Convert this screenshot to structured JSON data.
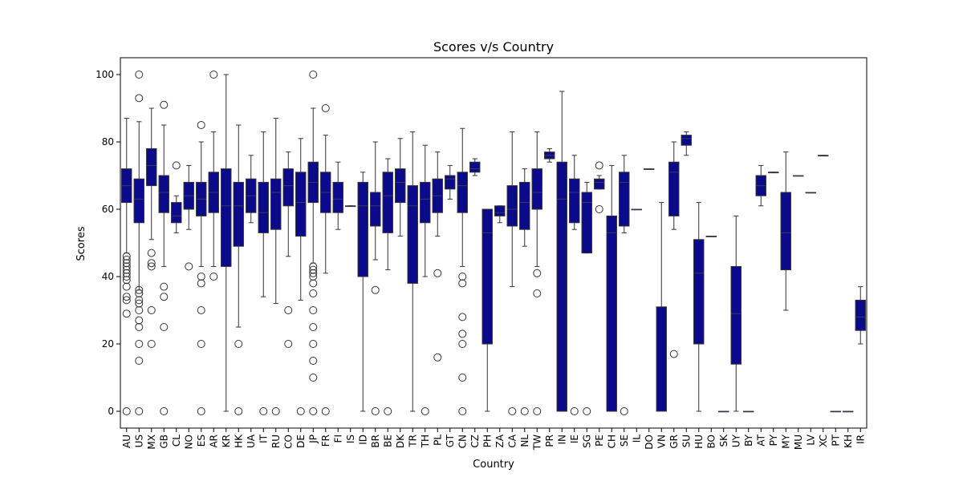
{
  "chart_data": {
    "type": "box",
    "title": "Scores v/s Country",
    "xlabel": "Country",
    "ylabel": "Scores",
    "ylim": [
      -5,
      105
    ],
    "yticks": [
      0,
      20,
      40,
      60,
      80,
      100
    ],
    "grid": false,
    "legend": "none",
    "box_color": "#0a0a8a",
    "median_color": "#3c3c5a",
    "outlier_color": "#333333",
    "categories": [
      "AU",
      "US",
      "MX",
      "GB",
      "CL",
      "NO",
      "ES",
      "AR",
      "KR",
      "HK",
      "UA",
      "IT",
      "RU",
      "CO",
      "DE",
      "JP",
      "FR",
      "FI",
      "IS",
      "ID",
      "BR",
      "BE",
      "DK",
      "TR",
      "TH",
      "PL",
      "GT",
      "CN",
      "CZ",
      "PH",
      "ZA",
      "CA",
      "NL",
      "TW",
      "PR",
      "IN",
      "IE",
      "SG",
      "PE",
      "CH",
      "SE",
      "IL",
      "DO",
      "VN",
      "GR",
      "SU",
      "HU",
      "BO",
      "SK",
      "UY",
      "BY",
      "AT",
      "PY",
      "MY",
      "MU",
      "LV",
      "XC",
      "PT",
      "KH",
      "IR"
    ],
    "boxes": [
      {
        "country": "AU",
        "min": 47,
        "q1": 62,
        "median": 67,
        "q3": 72,
        "max": 87,
        "outliers": [
          0,
          29,
          33,
          34,
          37,
          39,
          40,
          41,
          42,
          43,
          44,
          45,
          46
        ]
      },
      {
        "country": "US",
        "min": 36,
        "q1": 56,
        "median": 63,
        "q3": 69,
        "max": 86,
        "outliers": [
          0,
          15,
          20,
          25,
          27,
          30,
          32,
          33,
          35,
          36,
          93,
          100
        ]
      },
      {
        "country": "MX",
        "min": 51,
        "q1": 67,
        "median": 73,
        "q3": 78,
        "max": 90,
        "outliers": [
          20,
          30,
          43,
          44,
          47
        ]
      },
      {
        "country": "GB",
        "min": 43,
        "q1": 59,
        "median": 65,
        "q3": 70,
        "max": 85,
        "outliers": [
          0,
          25,
          34,
          37,
          91
        ]
      },
      {
        "country": "CL",
        "min": 53,
        "q1": 56,
        "median": 58,
        "q3": 62,
        "max": 64,
        "outliers": [
          73
        ]
      },
      {
        "country": "NO",
        "min": 54,
        "q1": 60,
        "median": 64,
        "q3": 68,
        "max": 73,
        "outliers": [
          43
        ]
      },
      {
        "country": "ES",
        "min": 43,
        "q1": 58,
        "median": 63,
        "q3": 68,
        "max": 80,
        "outliers": [
          0,
          20,
          30,
          38,
          40,
          85
        ]
      },
      {
        "country": "AR",
        "min": 43,
        "q1": 59,
        "median": 65,
        "q3": 71,
        "max": 83,
        "outliers": [
          40,
          100
        ]
      },
      {
        "country": "KR",
        "min": 0,
        "q1": 43,
        "median": 61,
        "q3": 72,
        "max": 100,
        "outliers": []
      },
      {
        "country": "HK",
        "min": 25,
        "q1": 49,
        "median": 61,
        "q3": 68,
        "max": 85,
        "outliers": [
          0,
          20
        ]
      },
      {
        "country": "UA",
        "min": 56,
        "q1": 59,
        "median": 64,
        "q3": 69,
        "max": 76,
        "outliers": []
      },
      {
        "country": "IT",
        "min": 34,
        "q1": 53,
        "median": 59,
        "q3": 68,
        "max": 83,
        "outliers": [
          0
        ]
      },
      {
        "country": "RU",
        "min": 32,
        "q1": 54,
        "median": 65,
        "q3": 69,
        "max": 87,
        "outliers": [
          0
        ]
      },
      {
        "country": "CO",
        "min": 46,
        "q1": 61,
        "median": 67,
        "q3": 72,
        "max": 77,
        "outliers": [
          20,
          30
        ]
      },
      {
        "country": "DE",
        "min": 33,
        "q1": 52,
        "median": 62,
        "q3": 71,
        "max": 81,
        "outliers": [
          0
        ]
      },
      {
        "country": "JP",
        "min": 44,
        "q1": 62,
        "median": 68,
        "q3": 74,
        "max": 90,
        "outliers": [
          0,
          10,
          15,
          20,
          25,
          30,
          35,
          38,
          40,
          41,
          42,
          43,
          100
        ]
      },
      {
        "country": "FR",
        "min": 41,
        "q1": 59,
        "median": 65,
        "q3": 71,
        "max": 82,
        "outliers": [
          0,
          90
        ]
      },
      {
        "country": "FI",
        "min": 54,
        "q1": 59,
        "median": 63,
        "q3": 68,
        "max": 74,
        "outliers": []
      },
      {
        "country": "IS",
        "min": 61,
        "q1": 61,
        "median": 61,
        "q3": 61,
        "max": 61,
        "outliers": []
      },
      {
        "country": "ID",
        "min": 0,
        "q1": 40,
        "median": 61,
        "q3": 68,
        "max": 71,
        "outliers": []
      },
      {
        "country": "BR",
        "min": 45,
        "q1": 55,
        "median": 61,
        "q3": 65,
        "max": 80,
        "outliers": [
          0,
          36
        ]
      },
      {
        "country": "BE",
        "min": 42,
        "q1": 53,
        "median": 64,
        "q3": 71,
        "max": 75,
        "outliers": [
          0
        ]
      },
      {
        "country": "DK",
        "min": 52,
        "q1": 62,
        "median": 68,
        "q3": 72,
        "max": 81,
        "outliers": []
      },
      {
        "country": "TR",
        "min": 0,
        "q1": 38,
        "median": 61,
        "q3": 67,
        "max": 83,
        "outliers": []
      },
      {
        "country": "TH",
        "min": 40,
        "q1": 56,
        "median": 63,
        "q3": 68,
        "max": 79,
        "outliers": [
          0
        ]
      },
      {
        "country": "PL",
        "min": 52,
        "q1": 59,
        "median": 64,
        "q3": 69,
        "max": 77,
        "outliers": [
          16,
          41
        ]
      },
      {
        "country": "GT",
        "min": 63,
        "q1": 66,
        "median": 69,
        "q3": 70,
        "max": 73,
        "outliers": []
      },
      {
        "country": "CN",
        "min": 43,
        "q1": 59,
        "median": 67,
        "q3": 71,
        "max": 84,
        "outliers": [
          0,
          10,
          20,
          23,
          28,
          38,
          40
        ]
      },
      {
        "country": "CZ",
        "min": 70,
        "q1": 71,
        "median": 72,
        "q3": 74,
        "max": 75,
        "outliers": []
      },
      {
        "country": "PH",
        "min": 0,
        "q1": 20,
        "median": 53,
        "q3": 60,
        "max": 60,
        "outliers": []
      },
      {
        "country": "ZA",
        "min": 56,
        "q1": 58,
        "median": 59,
        "q3": 61,
        "max": 61,
        "outliers": []
      },
      {
        "country": "CA",
        "min": 37,
        "q1": 55,
        "median": 60,
        "q3": 67,
        "max": 83,
        "outliers": [
          0
        ]
      },
      {
        "country": "NL",
        "min": 49,
        "q1": 54,
        "median": 62,
        "q3": 68,
        "max": 72,
        "outliers": [
          0
        ]
      },
      {
        "country": "TW",
        "min": 43,
        "q1": 60,
        "median": 65,
        "q3": 72,
        "max": 83,
        "outliers": [
          0,
          35,
          41
        ]
      },
      {
        "country": "PR",
        "min": 74,
        "q1": 75,
        "median": 76,
        "q3": 77,
        "max": 78,
        "outliers": []
      },
      {
        "country": "IN",
        "min": 0,
        "q1": 0,
        "median": 63,
        "q3": 74,
        "max": 95,
        "outliers": []
      },
      {
        "country": "IE",
        "min": 54,
        "q1": 56,
        "median": 65,
        "q3": 69,
        "max": 76,
        "outliers": [
          0
        ]
      },
      {
        "country": "SG",
        "min": 47,
        "q1": 47,
        "median": 62,
        "q3": 65,
        "max": 68,
        "outliers": [
          0
        ]
      },
      {
        "country": "PE",
        "min": 66,
        "q1": 66,
        "median": 68,
        "q3": 69,
        "max": 70,
        "outliers": [
          60,
          73
        ]
      },
      {
        "country": "CH",
        "min": 0,
        "q1": 0,
        "median": 53,
        "q3": 58,
        "max": 73,
        "outliers": []
      },
      {
        "country": "SE",
        "min": 53,
        "q1": 55,
        "median": 68,
        "q3": 71,
        "max": 76,
        "outliers": [
          0
        ]
      },
      {
        "country": "IL",
        "min": 60,
        "q1": 60,
        "median": 60,
        "q3": 60,
        "max": 60,
        "outliers": []
      },
      {
        "country": "DO",
        "min": 72,
        "q1": 72,
        "median": 72,
        "q3": 72,
        "max": 72,
        "outliers": []
      },
      {
        "country": "VN",
        "min": 0,
        "q1": 0,
        "median": 0,
        "q3": 31,
        "max": 62,
        "outliers": []
      },
      {
        "country": "GR",
        "min": 54,
        "q1": 58,
        "median": 71,
        "q3": 74,
        "max": 80,
        "outliers": [
          17
        ]
      },
      {
        "country": "SU",
        "min": 76,
        "q1": 79,
        "median": 81,
        "q3": 82,
        "max": 83,
        "outliers": []
      },
      {
        "country": "HU",
        "min": 0,
        "q1": 20,
        "median": 41,
        "q3": 51,
        "max": 62,
        "outliers": []
      },
      {
        "country": "BO",
        "min": 52,
        "q1": 52,
        "median": 52,
        "q3": 52,
        "max": 52,
        "outliers": []
      },
      {
        "country": "SK",
        "min": 0,
        "q1": 0,
        "median": 0,
        "q3": 0,
        "max": 0,
        "outliers": []
      },
      {
        "country": "UY",
        "min": 0,
        "q1": 14,
        "median": 29,
        "q3": 43,
        "max": 58,
        "outliers": []
      },
      {
        "country": "BY",
        "min": 0,
        "q1": 0,
        "median": 0,
        "q3": 0,
        "max": 0,
        "outliers": []
      },
      {
        "country": "AT",
        "min": 61,
        "q1": 64,
        "median": 67,
        "q3": 70,
        "max": 73,
        "outliers": []
      },
      {
        "country": "PY",
        "min": 71,
        "q1": 71,
        "median": 71,
        "q3": 71,
        "max": 71,
        "outliers": []
      },
      {
        "country": "MY",
        "min": 30,
        "q1": 42,
        "median": 53,
        "q3": 65,
        "max": 77,
        "outliers": []
      },
      {
        "country": "MU",
        "min": 70,
        "q1": 70,
        "median": 70,
        "q3": 70,
        "max": 70,
        "outliers": []
      },
      {
        "country": "LV",
        "min": 65,
        "q1": 65,
        "median": 65,
        "q3": 65,
        "max": 65,
        "outliers": []
      },
      {
        "country": "XC",
        "min": 76,
        "q1": 76,
        "median": 76,
        "q3": 76,
        "max": 76,
        "outliers": []
      },
      {
        "country": "PT",
        "min": 0,
        "q1": 0,
        "median": 0,
        "q3": 0,
        "max": 0,
        "outliers": []
      },
      {
        "country": "KH",
        "min": 0,
        "q1": 0,
        "median": 0,
        "q3": 0,
        "max": 0,
        "outliers": []
      },
      {
        "country": "IR",
        "min": 20,
        "q1": 24,
        "median": 28,
        "q3": 33,
        "max": 37,
        "outliers": []
      }
    ]
  }
}
